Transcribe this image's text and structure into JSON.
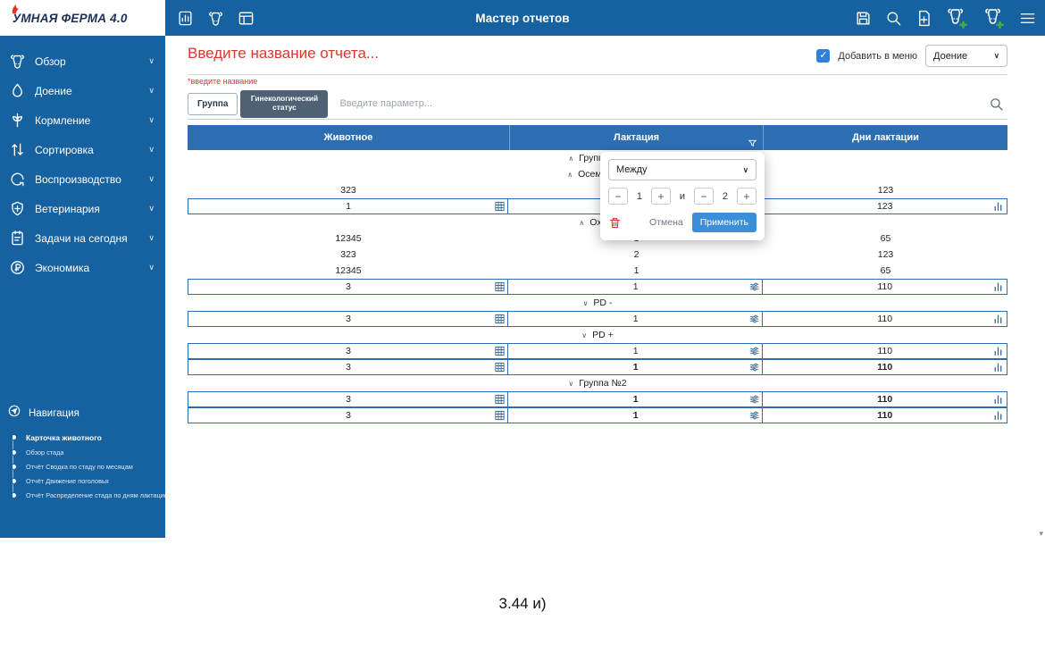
{
  "colors": {
    "brand_blue": "#16619f",
    "table_header_blue": "#2d6eb3",
    "alert_red": "#d9392c",
    "apply_blue": "#3d8ed8",
    "plus_green": "#3fae4a",
    "chip_active": "#4e6175"
  },
  "topbar": {
    "title": "Мастер отчетов",
    "logo_text": "УМНАЯ ФЕРМА 4.0",
    "left_icons": [
      "report-builder",
      "cow",
      "herd"
    ],
    "right_icons": [
      "save",
      "search",
      "file-add",
      "cow-add",
      "bull-add",
      "menu"
    ]
  },
  "sidebar": {
    "items": [
      {
        "label": "Обзор",
        "icon": "cow"
      },
      {
        "label": "Доение",
        "icon": "drop"
      },
      {
        "label": "Кормление",
        "icon": "wheat"
      },
      {
        "label": "Сортировка",
        "icon": "sort"
      },
      {
        "label": "Воспроизводство",
        "icon": "cycle"
      },
      {
        "label": "Ветеринария",
        "icon": "vet"
      },
      {
        "label": "Задачи на сегодня",
        "icon": "tasks"
      },
      {
        "label": "Экономика",
        "icon": "ruble"
      }
    ],
    "navigation": {
      "title": "Навигация",
      "items": [
        "Карточка животного",
        "Обзор стада",
        "Отчёт Сводка по стаду по месяцам",
        "Отчёт Движение поголовья",
        "Отчёт Распределение стада по дням лактации"
      ]
    }
  },
  "report": {
    "name_placeholder": "Введите название отчета...",
    "name_hint": "*введите название",
    "add_to_menu_label": "Добавить в меню",
    "add_to_menu_checked": true,
    "menu_select_value": "Доение",
    "chips": [
      {
        "label": "Группа",
        "active": false
      },
      {
        "label": "Гинекологический статус",
        "active": true
      }
    ],
    "param_placeholder": "Введите параметр..."
  },
  "table": {
    "columns": [
      "Животное",
      "Лактация",
      "Дни лактации"
    ],
    "rows": [
      {
        "type": "group",
        "chevron": "up",
        "label": "Группа №1"
      },
      {
        "type": "group",
        "chevron": "up",
        "label": "Осеменена"
      },
      {
        "type": "data",
        "cells": [
          "323",
          "",
          "123"
        ]
      },
      {
        "type": "input",
        "cells": [
          "1",
          "",
          "123"
        ]
      },
      {
        "type": "group",
        "chevron": "up",
        "label": "Охота"
      },
      {
        "type": "data",
        "cells": [
          "12345",
          "1",
          "65"
        ]
      },
      {
        "type": "data",
        "cells": [
          "323",
          "2",
          "123"
        ]
      },
      {
        "type": "data",
        "cells": [
          "12345",
          "1",
          "65"
        ]
      },
      {
        "type": "input",
        "cells": [
          "3",
          "1",
          "110"
        ]
      },
      {
        "type": "group",
        "chevron": "down",
        "label": "PD -"
      },
      {
        "type": "input",
        "cells": [
          "3",
          "1",
          "110"
        ]
      },
      {
        "type": "group",
        "chevron": "down",
        "label": "PD +"
      },
      {
        "type": "input",
        "cells": [
          "3",
          "1",
          "110"
        ]
      },
      {
        "type": "input",
        "cells": [
          "3",
          "1",
          "110"
        ],
        "bold": [
          false,
          true,
          true
        ]
      },
      {
        "type": "group",
        "chevron": "down",
        "label": "Группа №2"
      },
      {
        "type": "input",
        "cells": [
          "3",
          "1",
          "110"
        ],
        "bold": [
          false,
          true,
          true
        ]
      },
      {
        "type": "input",
        "cells": [
          "3",
          "1",
          "110"
        ],
        "bold": [
          false,
          true,
          true
        ]
      }
    ]
  },
  "filter_popup": {
    "operator": "Между",
    "value_from": "1",
    "and_label": "и",
    "value_to": "2",
    "cancel_label": "Отмена",
    "apply_label": "Применить"
  },
  "caption": "3.44 и)"
}
